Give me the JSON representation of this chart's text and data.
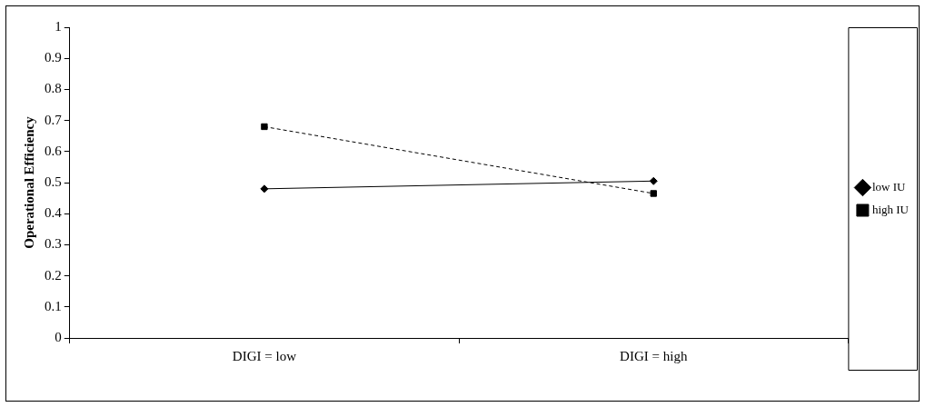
{
  "chart_data": {
    "type": "line",
    "ylabel": "Operational Efficiency",
    "categories": [
      "DIGI = low",
      "DIGI = high"
    ],
    "series": [
      {
        "name": "low IU",
        "color": "#000000",
        "values": [
          0.48,
          0.505
        ],
        "marker": "diamond",
        "line_style": "solid"
      },
      {
        "name": "high IU",
        "color": "#000000",
        "values": [
          0.68,
          0.465
        ],
        "marker": "square",
        "line_style": "dashed"
      }
    ],
    "ylim": [
      0,
      1
    ],
    "yticks": [
      0,
      0.1,
      0.2,
      0.3,
      0.4,
      0.5,
      0.6,
      0.7,
      0.8,
      0.9,
      1
    ],
    "grid": false,
    "legend": "right"
  }
}
